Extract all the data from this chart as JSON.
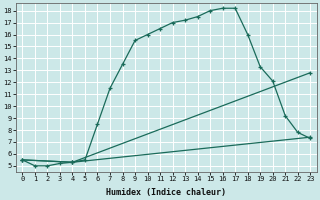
{
  "xlabel": "Humidex (Indice chaleur)",
  "background_color": "#cce8e8",
  "grid_color": "#b0d4d4",
  "line_color": "#1a6b5a",
  "xlim": [
    -0.5,
    23.5
  ],
  "ylim": [
    4.5,
    18.6
  ],
  "xticks": [
    0,
    1,
    2,
    3,
    4,
    5,
    6,
    7,
    8,
    9,
    10,
    11,
    12,
    13,
    14,
    15,
    16,
    17,
    18,
    19,
    20,
    21,
    22,
    23
  ],
  "yticks": [
    5,
    6,
    7,
    8,
    9,
    10,
    11,
    12,
    13,
    14,
    15,
    16,
    17,
    18
  ],
  "line1_x": [
    0,
    1,
    2,
    3,
    4,
    5,
    6,
    7,
    8,
    9,
    10,
    11,
    12,
    13,
    14,
    15,
    16,
    17,
    18,
    19,
    20,
    21,
    22,
    23
  ],
  "line1_y": [
    5.5,
    5.0,
    5.0,
    5.2,
    5.3,
    5.5,
    8.5,
    11.5,
    13.5,
    15.5,
    16.0,
    16.5,
    17.0,
    17.2,
    17.5,
    18.0,
    18.2,
    18.2,
    16.0,
    13.3,
    12.1,
    9.2,
    7.8,
    7.3
  ],
  "line2_x": [
    0,
    4,
    23
  ],
  "line2_y": [
    5.5,
    5.3,
    12.8
  ],
  "line3_x": [
    0,
    4,
    23
  ],
  "line3_y": [
    5.5,
    5.3,
    7.4
  ]
}
